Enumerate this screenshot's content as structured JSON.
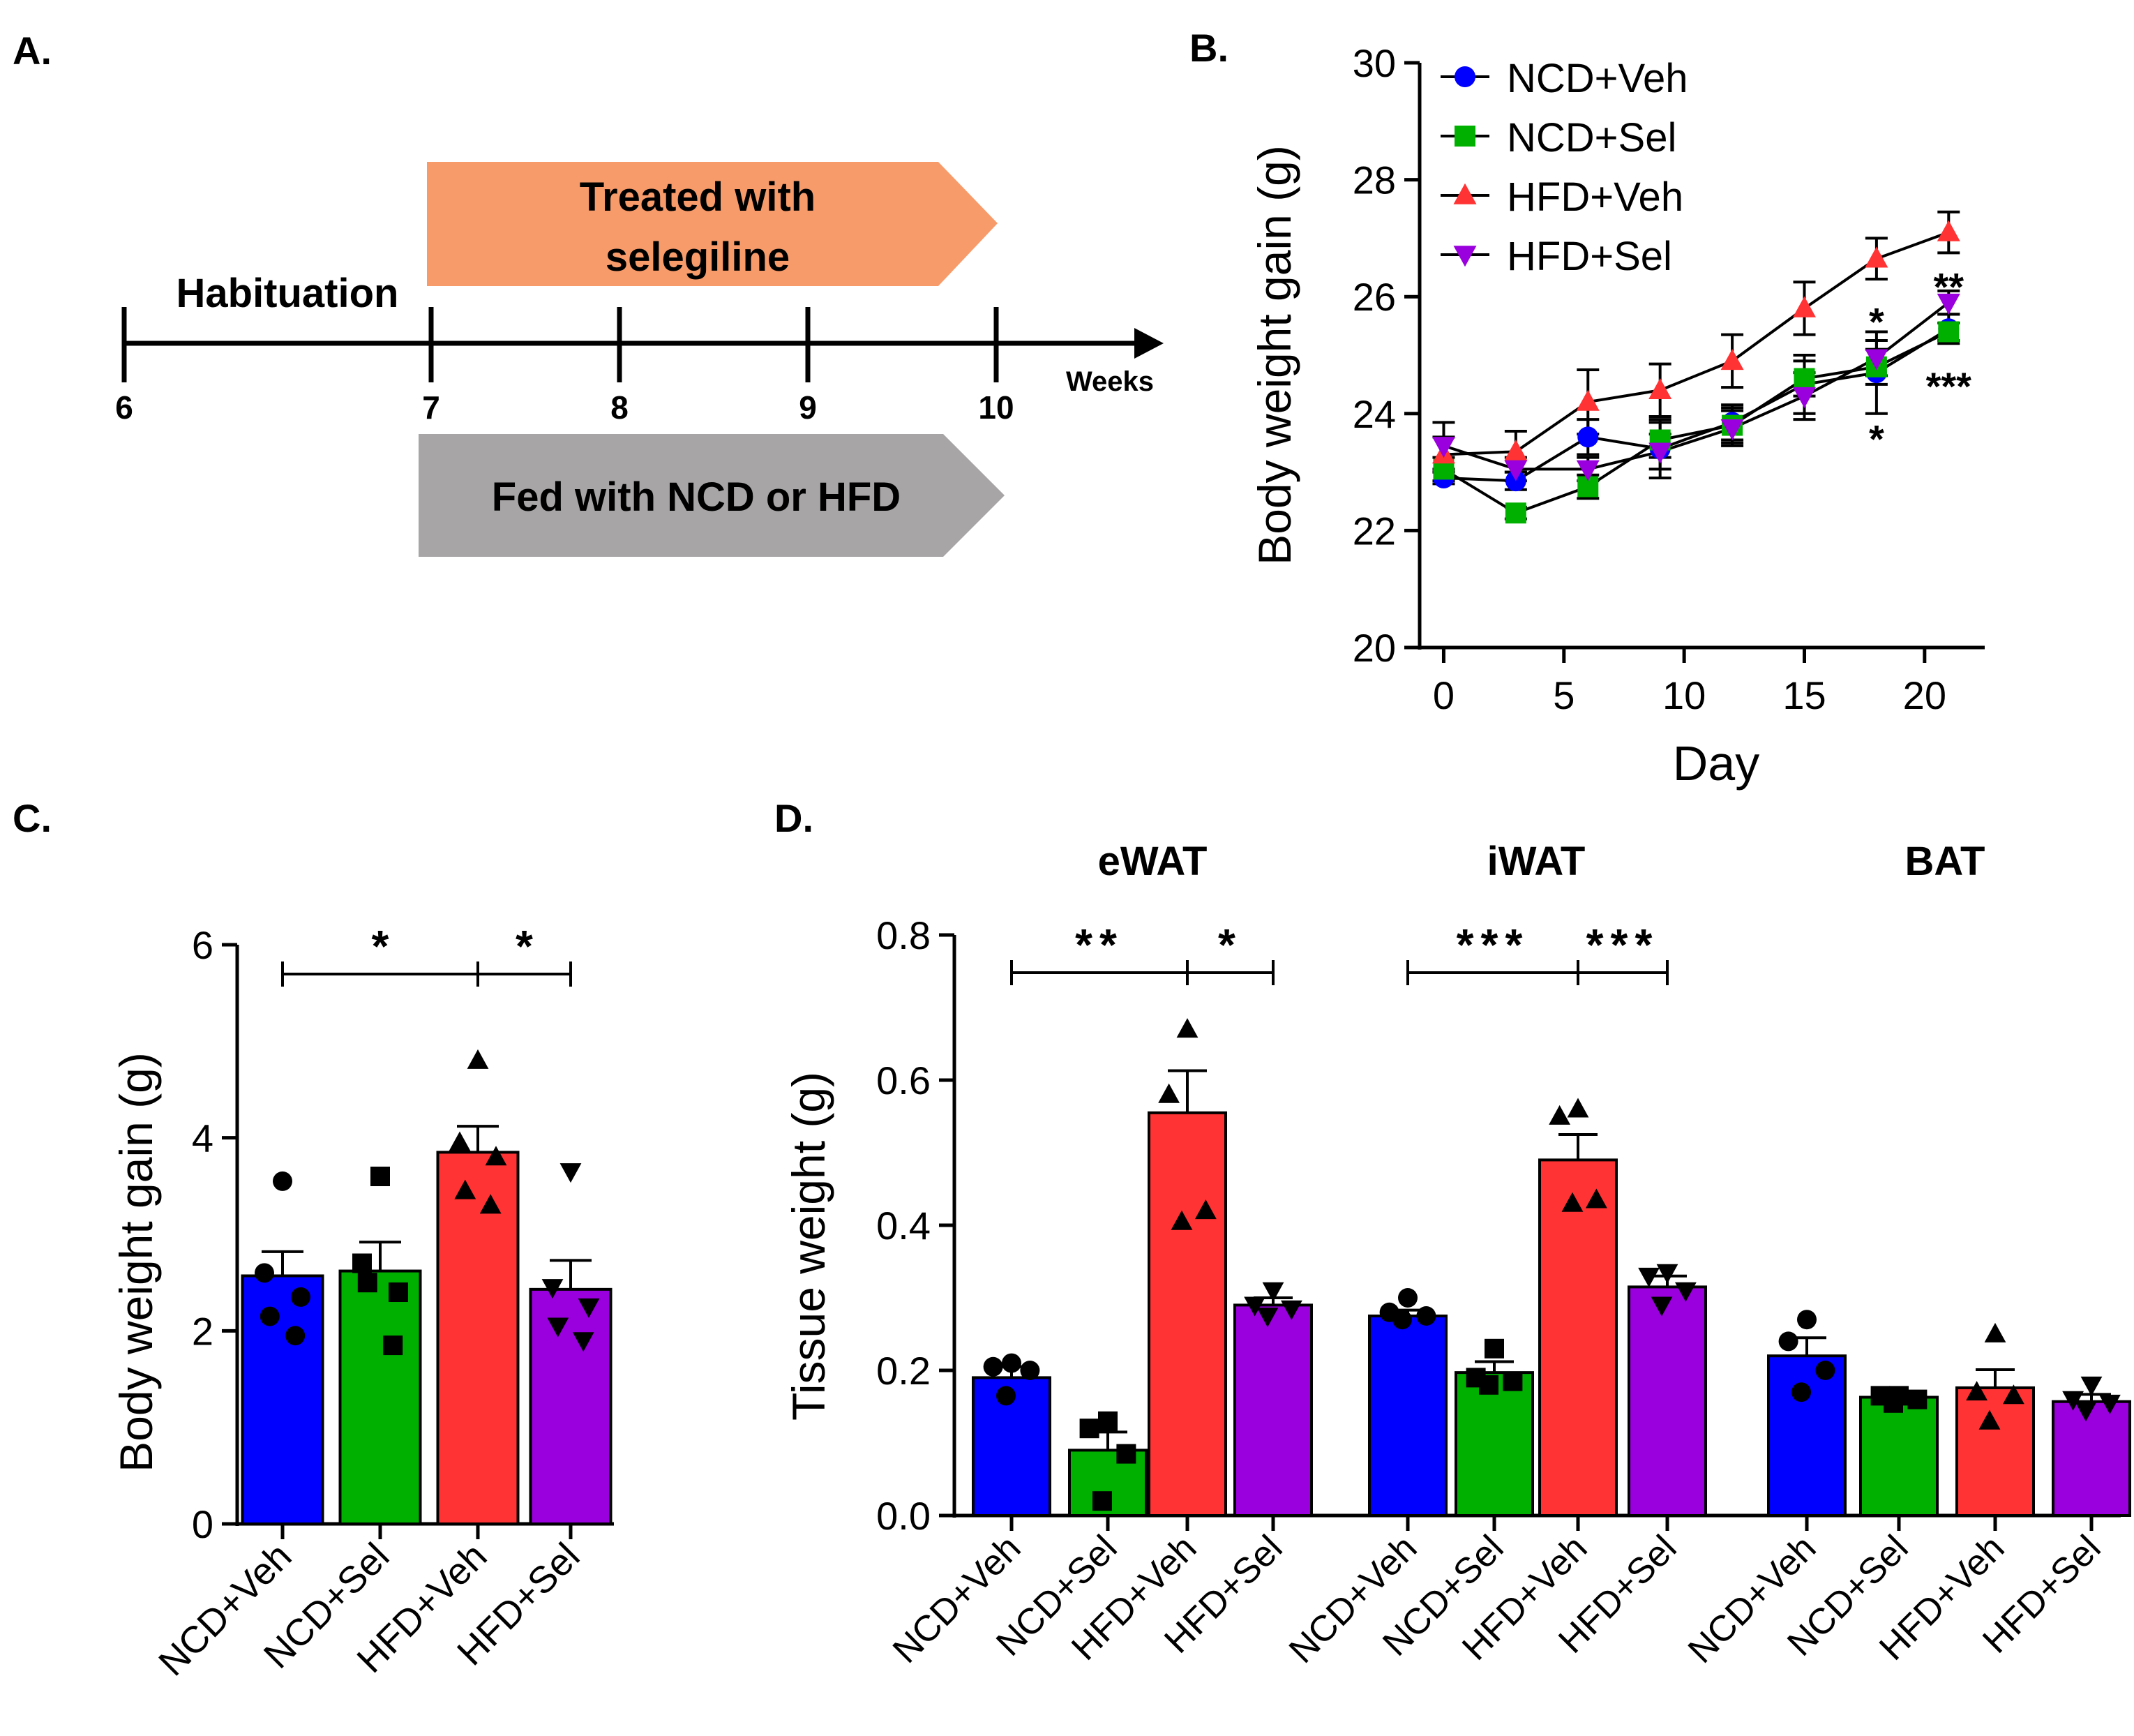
{
  "figure": {
    "panel_labels": [
      "A.",
      "B.",
      "C.",
      "D."
    ]
  },
  "timeline": {
    "habituation_label": "Habituation",
    "treated_line1": "Treated with",
    "treated_line2": "selegiline",
    "fed_label": "Fed with NCD or HFD",
    "week_ticks": [
      "6",
      "7",
      "8",
      "9",
      "10"
    ],
    "axis_unit": "Weeks",
    "treated_color": "#f79b6b",
    "fed_color": "#a7a5a5"
  },
  "groups": [
    "NCD+Veh",
    "NCD+Sel",
    "HFD+Veh",
    "HFD+Sel"
  ],
  "colors": [
    "#0000ff",
    "#00b000",
    "#ff3333",
    "#9900dd"
  ],
  "chart_data": [
    {
      "id": "B",
      "type": "line",
      "xlabel": "Day",
      "ylabel": "Body weight gain (g)",
      "xlim": [
        -1,
        22.5
      ],
      "ylim": [
        20,
        30
      ],
      "xticks": [
        0,
        5,
        10,
        15,
        20
      ],
      "yticks": [
        20,
        22,
        24,
        26,
        28,
        30
      ],
      "legend_position": "top",
      "x": [
        0,
        3,
        6,
        9,
        12,
        15,
        18,
        21
      ],
      "series": [
        {
          "name": "NCD+Veh",
          "color": "#0000ff",
          "marker": "circle",
          "values": [
            22.9,
            22.85,
            23.6,
            23.4,
            23.85,
            24.5,
            24.7,
            25.45
          ],
          "sem": [
            0.1,
            0.15,
            0.3,
            0.5,
            0.3,
            0.5,
            0.7,
            0.25
          ]
        },
        {
          "name": "NCD+Sel",
          "color": "#00b000",
          "marker": "square",
          "values": [
            23.05,
            22.3,
            22.75,
            23.55,
            23.8,
            24.6,
            24.8,
            25.4
          ],
          "sem": [
            0.2,
            0.1,
            0.2,
            0.3,
            0.3,
            0.3,
            0.3,
            0.15
          ]
        },
        {
          "name": "HFD+Veh",
          "color": "#ff3333",
          "marker": "triangle-up",
          "values": [
            23.3,
            23.35,
            24.2,
            24.4,
            24.9,
            25.8,
            26.65,
            27.1
          ],
          "sem": [
            0.3,
            0.35,
            0.55,
            0.45,
            0.45,
            0.45,
            0.35,
            0.35
          ]
        },
        {
          "name": "HFD+Sel",
          "color": "#9900dd",
          "marker": "triangle-down",
          "values": [
            23.45,
            23.05,
            23.05,
            23.35,
            23.75,
            24.3,
            24.95,
            25.9
          ],
          "sem": [
            0.4,
            0.2,
            0.2,
            0.3,
            0.3,
            0.4,
            0.3,
            0.2
          ]
        }
      ],
      "annotations": [
        {
          "text": "*",
          "x": 18,
          "y": 25.6
        },
        {
          "text": "**",
          "x": 21,
          "y": 26.2
        },
        {
          "text": "*",
          "x": 18,
          "y": 23.6
        },
        {
          "text": "***",
          "x": 21,
          "y": 24.5
        }
      ]
    },
    {
      "id": "C",
      "type": "bar",
      "ylabel": "Body weight gain (g)",
      "ylim": [
        0,
        6
      ],
      "yticks": [
        0,
        2,
        4,
        6
      ],
      "categories": [
        "NCD+Veh",
        "NCD+Sel",
        "HFD+Veh",
        "HFD+Sel"
      ],
      "values": [
        2.57,
        2.62,
        3.85,
        2.43
      ],
      "sem": [
        0.25,
        0.3,
        0.27,
        0.3
      ],
      "points": [
        [
          3.55,
          2.6,
          2.35,
          2.15,
          1.95
        ],
        [
          3.6,
          2.7,
          2.4,
          2.5,
          1.85
        ],
        [
          4.8,
          3.95,
          3.8,
          3.45,
          3.3
        ],
        [
          3.65,
          2.45,
          2.25,
          2.05,
          1.9
        ]
      ],
      "markers": [
        "circle",
        "square",
        "triangle-up",
        "triangle-down"
      ],
      "significance": [
        {
          "from": 0,
          "to": 2,
          "text": "*"
        },
        {
          "from": 2,
          "to": 3,
          "text": "*"
        }
      ]
    },
    {
      "id": "D",
      "type": "bar",
      "ylabel": "Tissue weight (g)",
      "ylim": [
        0,
        0.8
      ],
      "yticks": [
        "0.0",
        "0.2",
        "0.4",
        "0.6",
        "0.8"
      ],
      "groups": [
        "eWAT",
        "iWAT",
        "BAT"
      ],
      "categories": [
        "NCD+Veh",
        "NCD+Sel",
        "HFD+Veh",
        "HFD+Sel"
      ],
      "markers": [
        "circle",
        "square",
        "triangle-up",
        "triangle-down"
      ],
      "series": [
        {
          "tissue": "eWAT",
          "values": [
            0.19,
            0.09,
            0.555,
            0.29
          ],
          "sem": [
            0.015,
            0.025,
            0.058,
            0.01
          ],
          "points": [
            [
              0.21,
              0.205,
              0.2,
              0.165
            ],
            [
              0.13,
              0.12,
              0.085,
              0.02
            ],
            [
              0.67,
              0.58,
              0.42,
              0.405
            ],
            [
              0.31,
              0.29,
              0.285,
              0.275
            ]
          ],
          "significance": [
            {
              "from": 0,
              "to": 2,
              "text": "**"
            },
            {
              "from": 2,
              "to": 3,
              "text": "*"
            }
          ]
        },
        {
          "tissue": "iWAT",
          "values": [
            0.275,
            0.197,
            0.49,
            0.315
          ],
          "sem": [
            0.008,
            0.015,
            0.035,
            0.015
          ],
          "points": [
            [
              0.3,
              0.28,
              0.275,
              0.27
            ],
            [
              0.23,
              0.19,
              0.185,
              0.18
            ],
            [
              0.56,
              0.55,
              0.435,
              0.43
            ],
            [
              0.335,
              0.33,
              0.31,
              0.29
            ]
          ],
          "significance": [
            {
              "from": 0,
              "to": 2,
              "text": "***"
            },
            {
              "from": 2,
              "to": 3,
              "text": "***"
            }
          ]
        },
        {
          "tissue": "BAT",
          "values": [
            0.22,
            0.163,
            0.176,
            0.157
          ],
          "sem": [
            0.025,
            0.005,
            0.025,
            0.01
          ],
          "points": [
            [
              0.27,
              0.24,
              0.2,
              0.17
            ],
            [
              0.165,
              0.165,
              0.16,
              0.155
            ],
            [
              0.25,
              0.17,
              0.165,
              0.13
            ],
            [
              0.18,
              0.16,
              0.155,
              0.145
            ]
          ],
          "significance": []
        }
      ]
    }
  ]
}
